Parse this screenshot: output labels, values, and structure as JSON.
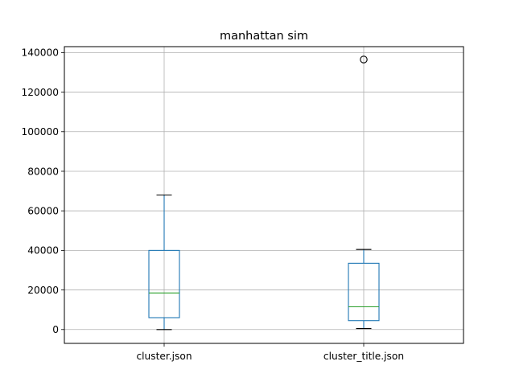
{
  "chart_data": {
    "type": "box",
    "title": "manhattan sim",
    "xlabel": "",
    "ylabel": "",
    "ylim": [
      -7000,
      143000
    ],
    "yticks": [
      0,
      20000,
      40000,
      60000,
      80000,
      100000,
      120000,
      140000
    ],
    "ytick_labels": [
      "0",
      "20000",
      "40000",
      "60000",
      "80000",
      "100000",
      "120000",
      "140000"
    ],
    "grid": true,
    "categories": [
      "cluster.json",
      "cluster_title.json"
    ],
    "boxes": [
      {
        "name": "cluster.json",
        "whisker_low": 0,
        "q1": 6000,
        "median": 18500,
        "q3": 40000,
        "whisker_high": 68000,
        "outliers": []
      },
      {
        "name": "cluster_title.json",
        "whisker_low": 500,
        "q1": 4500,
        "median": 11500,
        "q3": 33500,
        "whisker_high": 40500,
        "outliers": [
          136500
        ]
      }
    ],
    "colors": {
      "box": "#1f77b4",
      "median": "#2ca02c",
      "whisker_cap": "#000000",
      "outlier": "#000000",
      "grid": "#b0b0b0"
    }
  }
}
